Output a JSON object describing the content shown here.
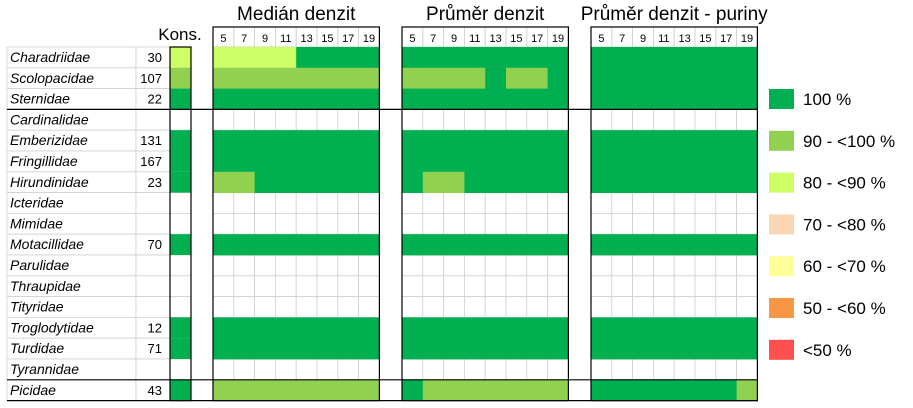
{
  "chart_data": {
    "type": "heatmap",
    "column_headers": {
      "kons": "Kons.",
      "groups": [
        "Medián denzit",
        "Průměr denzit",
        "Průměr denzit - puriny"
      ]
    },
    "x_ticks": [
      "5",
      "7",
      "9",
      "11",
      "13",
      "15",
      "17",
      "19"
    ],
    "rows": [
      {
        "family": "Charadriidae",
        "n": "30",
        "kons": "80 - <90 %",
        "median": [
          "80 - <90 %",
          "80 - <90 %",
          "80 - <90 %",
          "80 - <90 %",
          "100 %",
          "100 %",
          "100 %",
          "100 %"
        ],
        "prumer": [
          "100 %",
          "100 %",
          "100 %",
          "100 %",
          "100 %",
          "100 %",
          "100 %",
          "100 %"
        ],
        "puriny": [
          "100 %",
          "100 %",
          "100 %",
          "100 %",
          "100 %",
          "100 %",
          "100 %",
          "100 %"
        ]
      },
      {
        "family": "Scolopacidae",
        "n": "107",
        "kons": "90 - <100 %",
        "median": [
          "90 - <100 %",
          "90 - <100 %",
          "90 - <100 %",
          "90 - <100 %",
          "90 - <100 %",
          "90 - <100 %",
          "90 - <100 %",
          "90 - <100 %"
        ],
        "prumer": [
          "90 - <100 %",
          "90 - <100 %",
          "90 - <100 %",
          "90 - <100 %",
          "100 %",
          "90 - <100 %",
          "90 - <100 %",
          "100 %"
        ],
        "puriny": [
          "100 %",
          "100 %",
          "100 %",
          "100 %",
          "100 %",
          "100 %",
          "100 %",
          "100 %"
        ]
      },
      {
        "family": "Sternidae",
        "n": "22",
        "kons": "100 %",
        "median": [
          "100 %",
          "100 %",
          "100 %",
          "100 %",
          "100 %",
          "100 %",
          "100 %",
          "100 %"
        ],
        "prumer": [
          "100 %",
          "100 %",
          "100 %",
          "100 %",
          "100 %",
          "100 %",
          "100 %",
          "100 %"
        ],
        "puriny": [
          "100 %",
          "100 %",
          "100 %",
          "100 %",
          "100 %",
          "100 %",
          "100 %",
          "100 %"
        ]
      },
      {
        "family": "Cardinalidae",
        "n": "",
        "kons": "",
        "median": [
          "",
          "",
          "",
          "",
          "",
          "",
          "",
          ""
        ],
        "prumer": [
          "",
          "",
          "",
          "",
          "",
          "",
          "",
          ""
        ],
        "puriny": [
          "",
          "",
          "",
          "",
          "",
          "",
          "",
          ""
        ]
      },
      {
        "family": "Emberizidae",
        "n": "131",
        "kons": "100 %",
        "median": [
          "100 %",
          "100 %",
          "100 %",
          "100 %",
          "100 %",
          "100 %",
          "100 %",
          "100 %"
        ],
        "prumer": [
          "100 %",
          "100 %",
          "100 %",
          "100 %",
          "100 %",
          "100 %",
          "100 %",
          "100 %"
        ],
        "puriny": [
          "100 %",
          "100 %",
          "100 %",
          "100 %",
          "100 %",
          "100 %",
          "100 %",
          "100 %"
        ]
      },
      {
        "family": "Fringillidae",
        "n": "167",
        "kons": "100 %",
        "median": [
          "100 %",
          "100 %",
          "100 %",
          "100 %",
          "100 %",
          "100 %",
          "100 %",
          "100 %"
        ],
        "prumer": [
          "100 %",
          "100 %",
          "100 %",
          "100 %",
          "100 %",
          "100 %",
          "100 %",
          "100 %"
        ],
        "puriny": [
          "100 %",
          "100 %",
          "100 %",
          "100 %",
          "100 %",
          "100 %",
          "100 %",
          "100 %"
        ]
      },
      {
        "family": "Hirundinidae",
        "n": "23",
        "kons": "100 %",
        "median": [
          "90 - <100 %",
          "90 - <100 %",
          "100 %",
          "100 %",
          "100 %",
          "100 %",
          "100 %",
          "100 %"
        ],
        "prumer": [
          "100 %",
          "90 - <100 %",
          "90 - <100 %",
          "100 %",
          "100 %",
          "100 %",
          "100 %",
          "100 %"
        ],
        "puriny": [
          "100 %",
          "100 %",
          "100 %",
          "100 %",
          "100 %",
          "100 %",
          "100 %",
          "100 %"
        ]
      },
      {
        "family": "Icteridae",
        "n": "",
        "kons": "",
        "median": [
          "",
          "",
          "",
          "",
          "",
          "",
          "",
          ""
        ],
        "prumer": [
          "",
          "",
          "",
          "",
          "",
          "",
          "",
          ""
        ],
        "puriny": [
          "",
          "",
          "",
          "",
          "",
          "",
          "",
          ""
        ]
      },
      {
        "family": "Mimidae",
        "n": "",
        "kons": "",
        "median": [
          "",
          "",
          "",
          "",
          "",
          "",
          "",
          ""
        ],
        "prumer": [
          "",
          "",
          "",
          "",
          "",
          "",
          "",
          ""
        ],
        "puriny": [
          "",
          "",
          "",
          "",
          "",
          "",
          "",
          ""
        ]
      },
      {
        "family": "Motacillidae",
        "n": "70",
        "kons": "100 %",
        "median": [
          "100 %",
          "100 %",
          "100 %",
          "100 %",
          "100 %",
          "100 %",
          "100 %",
          "100 %"
        ],
        "prumer": [
          "100 %",
          "100 %",
          "100 %",
          "100 %",
          "100 %",
          "100 %",
          "100 %",
          "100 %"
        ],
        "puriny": [
          "100 %",
          "100 %",
          "100 %",
          "100 %",
          "100 %",
          "100 %",
          "100 %",
          "100 %"
        ]
      },
      {
        "family": "Parulidae",
        "n": "",
        "kons": "",
        "median": [
          "",
          "",
          "",
          "",
          "",
          "",
          "",
          ""
        ],
        "prumer": [
          "",
          "",
          "",
          "",
          "",
          "",
          "",
          ""
        ],
        "puriny": [
          "",
          "",
          "",
          "",
          "",
          "",
          "",
          ""
        ]
      },
      {
        "family": "Thraupidae",
        "n": "",
        "kons": "",
        "median": [
          "",
          "",
          "",
          "",
          "",
          "",
          "",
          ""
        ],
        "prumer": [
          "",
          "",
          "",
          "",
          "",
          "",
          "",
          ""
        ],
        "puriny": [
          "",
          "",
          "",
          "",
          "",
          "",
          "",
          ""
        ]
      },
      {
        "family": "Tityridae",
        "n": "",
        "kons": "",
        "median": [
          "",
          "",
          "",
          "",
          "",
          "",
          "",
          ""
        ],
        "prumer": [
          "",
          "",
          "",
          "",
          "",
          "",
          "",
          ""
        ],
        "puriny": [
          "",
          "",
          "",
          "",
          "",
          "",
          "",
          ""
        ]
      },
      {
        "family": "Troglodytidae",
        "n": "12",
        "kons": "100 %",
        "median": [
          "100 %",
          "100 %",
          "100 %",
          "100 %",
          "100 %",
          "100 %",
          "100 %",
          "100 %"
        ],
        "prumer": [
          "100 %",
          "100 %",
          "100 %",
          "100 %",
          "100 %",
          "100 %",
          "100 %",
          "100 %"
        ],
        "puriny": [
          "100 %",
          "100 %",
          "100 %",
          "100 %",
          "100 %",
          "100 %",
          "100 %",
          "100 %"
        ]
      },
      {
        "family": "Turdidae",
        "n": "71",
        "kons": "100 %",
        "median": [
          "100 %",
          "100 %",
          "100 %",
          "100 %",
          "100 %",
          "100 %",
          "100 %",
          "100 %"
        ],
        "prumer": [
          "100 %",
          "100 %",
          "100 %",
          "100 %",
          "100 %",
          "100 %",
          "100 %",
          "100 %"
        ],
        "puriny": [
          "100 %",
          "100 %",
          "100 %",
          "100 %",
          "100 %",
          "100 %",
          "100 %",
          "100 %"
        ]
      },
      {
        "family": "Tyrannidae",
        "n": "",
        "kons": "",
        "median": [
          "",
          "",
          "",
          "",
          "",
          "",
          "",
          ""
        ],
        "prumer": [
          "",
          "",
          "",
          "",
          "",
          "",
          "",
          ""
        ],
        "puriny": [
          "",
          "",
          "",
          "",
          "",
          "",
          "",
          ""
        ]
      },
      {
        "family": "Picidae",
        "n": "43",
        "kons": "100 %",
        "median": [
          "90 - <100 %",
          "90 - <100 %",
          "90 - <100 %",
          "90 - <100 %",
          "90 - <100 %",
          "90 - <100 %",
          "90 - <100 %",
          "90 - <100 %"
        ],
        "prumer": [
          "100 %",
          "90 - <100 %",
          "90 - <100 %",
          "90 - <100 %",
          "90 - <100 %",
          "90 - <100 %",
          "90 - <100 %",
          "90 - <100 %"
        ],
        "puriny": [
          "100 %",
          "100 %",
          "100 %",
          "100 %",
          "100 %",
          "100 %",
          "100 %",
          "90 - <100 %"
        ]
      }
    ],
    "legend": [
      {
        "label": "100 %",
        "color": "#00b050"
      },
      {
        "label": "90 - <100 %",
        "color": "#92d050"
      },
      {
        "label": "80 - <90 %",
        "color": "#ccff66"
      },
      {
        "label": "70 - <80 %",
        "color": "#fcd5b4"
      },
      {
        "label": "60 - <70 %",
        "color": "#ffff99"
      },
      {
        "label": "50 - <60 %",
        "color": "#f79646"
      },
      {
        "label": "<50 %",
        "color": "#ff5050"
      }
    ]
  }
}
